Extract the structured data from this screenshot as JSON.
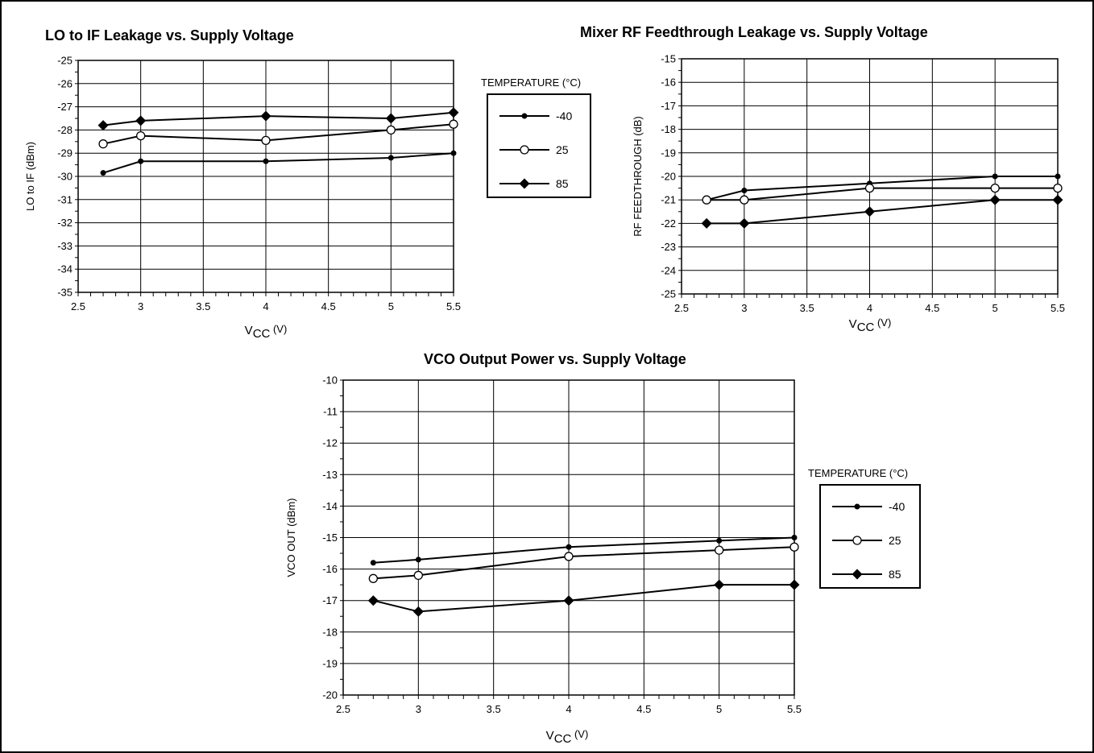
{
  "chart_data": [
    {
      "type": "line",
      "title": "LO to IF Leakage vs. Supply Voltage",
      "xlabel_main": "V",
      "xlabel_sub": "CC",
      "xlabel_unit": " (V)",
      "ylabel": "LO to IF (dBm)",
      "xlim": [
        2.5,
        5.5
      ],
      "ylim": [
        -35,
        -25
      ],
      "x_ticks": [
        "2.5",
        "3",
        "3.5",
        "4",
        "4.5",
        "5",
        "5.5"
      ],
      "y_ticks": [
        "-35",
        "-34",
        "-33",
        "-32",
        "-31",
        "-30",
        "-29",
        "-28",
        "-27",
        "-26",
        "-25"
      ],
      "grid": true,
      "series": [
        {
          "marker": "dot",
          "x": [
            2.7,
            3.0,
            4.0,
            5.0,
            5.5
          ],
          "values": [
            -29.85,
            -29.35,
            -29.35,
            -29.2,
            -29.0
          ]
        },
        {
          "marker": "circle",
          "x": [
            2.7,
            3.0,
            4.0,
            5.0,
            5.5
          ],
          "values": [
            -28.6,
            -28.25,
            -28.45,
            -28.0,
            -27.75
          ]
        },
        {
          "marker": "diamond",
          "x": [
            2.7,
            3.0,
            4.0,
            5.0,
            5.5
          ],
          "values": [
            -27.8,
            -27.6,
            -27.4,
            -27.5,
            -27.25
          ]
        }
      ]
    },
    {
      "type": "line",
      "title": "Mixer RF Feedthrough Leakage vs. Supply Voltage",
      "xlabel_main": "V",
      "xlabel_sub": "CC",
      "xlabel_unit": " (V)",
      "ylabel": "RF FEEDTHROUGH (dB)",
      "xlim": [
        2.5,
        5.5
      ],
      "ylim": [
        -25,
        -15
      ],
      "x_ticks": [
        "2.5",
        "3",
        "3.5",
        "4",
        "4.5",
        "5",
        "5.5"
      ],
      "y_ticks": [
        "-25",
        "-24",
        "-23",
        "-22",
        "-21",
        "-20",
        "-19",
        "-18",
        "-17",
        "-16",
        "-15"
      ],
      "grid": true,
      "series": [
        {
          "marker": "dot",
          "x": [
            2.7,
            3.0,
            4.0,
            5.0,
            5.5
          ],
          "values": [
            -21.0,
            -20.6,
            -20.3,
            -20.0,
            -20.0
          ]
        },
        {
          "marker": "circle",
          "x": [
            2.7,
            3.0,
            4.0,
            5.0,
            5.5
          ],
          "values": [
            -21.0,
            -21.0,
            -20.5,
            -20.5,
            -20.5
          ]
        },
        {
          "marker": "diamond",
          "x": [
            2.7,
            3.0,
            4.0,
            5.0,
            5.5
          ],
          "values": [
            -22.0,
            -22.0,
            -21.5,
            -21.0,
            -21.0
          ]
        }
      ]
    },
    {
      "type": "line",
      "title": "VCO Output Power vs. Supply Voltage",
      "xlabel_main": "V",
      "xlabel_sub": "CC",
      "xlabel_unit": " (V)",
      "ylabel": "VCO OUT (dBm)",
      "xlim": [
        2.5,
        5.5
      ],
      "ylim": [
        -20,
        -10
      ],
      "x_ticks": [
        "2.5",
        "3",
        "3.5",
        "4",
        "4.5",
        "5",
        "5.5"
      ],
      "y_ticks": [
        "-20",
        "-19",
        "-18",
        "-17",
        "-16",
        "-15",
        "-14",
        "-13",
        "-12",
        "-11",
        "-10"
      ],
      "grid": true,
      "series": [
        {
          "marker": "dot",
          "x": [
            2.7,
            3.0,
            4.0,
            5.0,
            5.5
          ],
          "values": [
            -15.8,
            -15.7,
            -15.3,
            -15.1,
            -15.0
          ]
        },
        {
          "marker": "circle",
          "x": [
            2.7,
            3.0,
            4.0,
            5.0,
            5.5
          ],
          "values": [
            -16.3,
            -16.2,
            -15.6,
            -15.4,
            -15.3
          ]
        },
        {
          "marker": "diamond",
          "x": [
            2.7,
            3.0,
            4.0,
            5.0,
            5.5
          ],
          "values": [
            -17.0,
            -17.35,
            -17.0,
            -16.5,
            -16.5
          ]
        }
      ]
    }
  ],
  "legends": {
    "top": {
      "title": "TEMPERATURE (°C)",
      "items": [
        {
          "label": "-40",
          "marker": "dot"
        },
        {
          "label": "25",
          "marker": "circle"
        },
        {
          "label": "85",
          "marker": "diamond"
        }
      ]
    },
    "bottom": {
      "title": "TEMPERATURE (°C)",
      "items": [
        {
          "label": "-40",
          "marker": "dot"
        },
        {
          "label": "25",
          "marker": "circle"
        },
        {
          "label": "85",
          "marker": "diamond"
        }
      ]
    }
  }
}
